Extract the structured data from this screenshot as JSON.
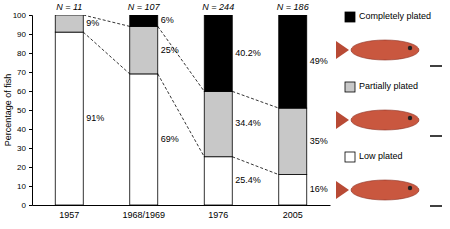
{
  "chart_data": {
    "type": "bar",
    "stacked": true,
    "data_labels": true,
    "y_label": "Percentage of fish",
    "categories": [
      "1957",
      "1968/1969",
      "1976",
      "2005"
    ],
    "annotations": [
      "N = 11",
      "N = 107",
      "N = 244",
      "N = 186"
    ],
    "ylim": [
      0,
      100
    ],
    "yticks": [
      0,
      10,
      20,
      30,
      40,
      50,
      60,
      70,
      80,
      90,
      100
    ],
    "legend": "right",
    "series": [
      {
        "name": "Low plated",
        "color": "#ffffff",
        "values": [
          91,
          69,
          25.4,
          16
        ],
        "value_labels": [
          "91%",
          "69%",
          "25.4%",
          "16%"
        ]
      },
      {
        "name": "Partially plated",
        "color": "#c8c8c8",
        "values": [
          9,
          25,
          34.4,
          35
        ],
        "value_labels": [
          "9%",
          "25%",
          "34.4%",
          "35%"
        ]
      },
      {
        "name": "Completely plated",
        "color": "#000000",
        "values": [
          0,
          6,
          40.2,
          49
        ],
        "value_labels": [
          null,
          "6%",
          "40.2%",
          "49%"
        ]
      }
    ]
  }
}
